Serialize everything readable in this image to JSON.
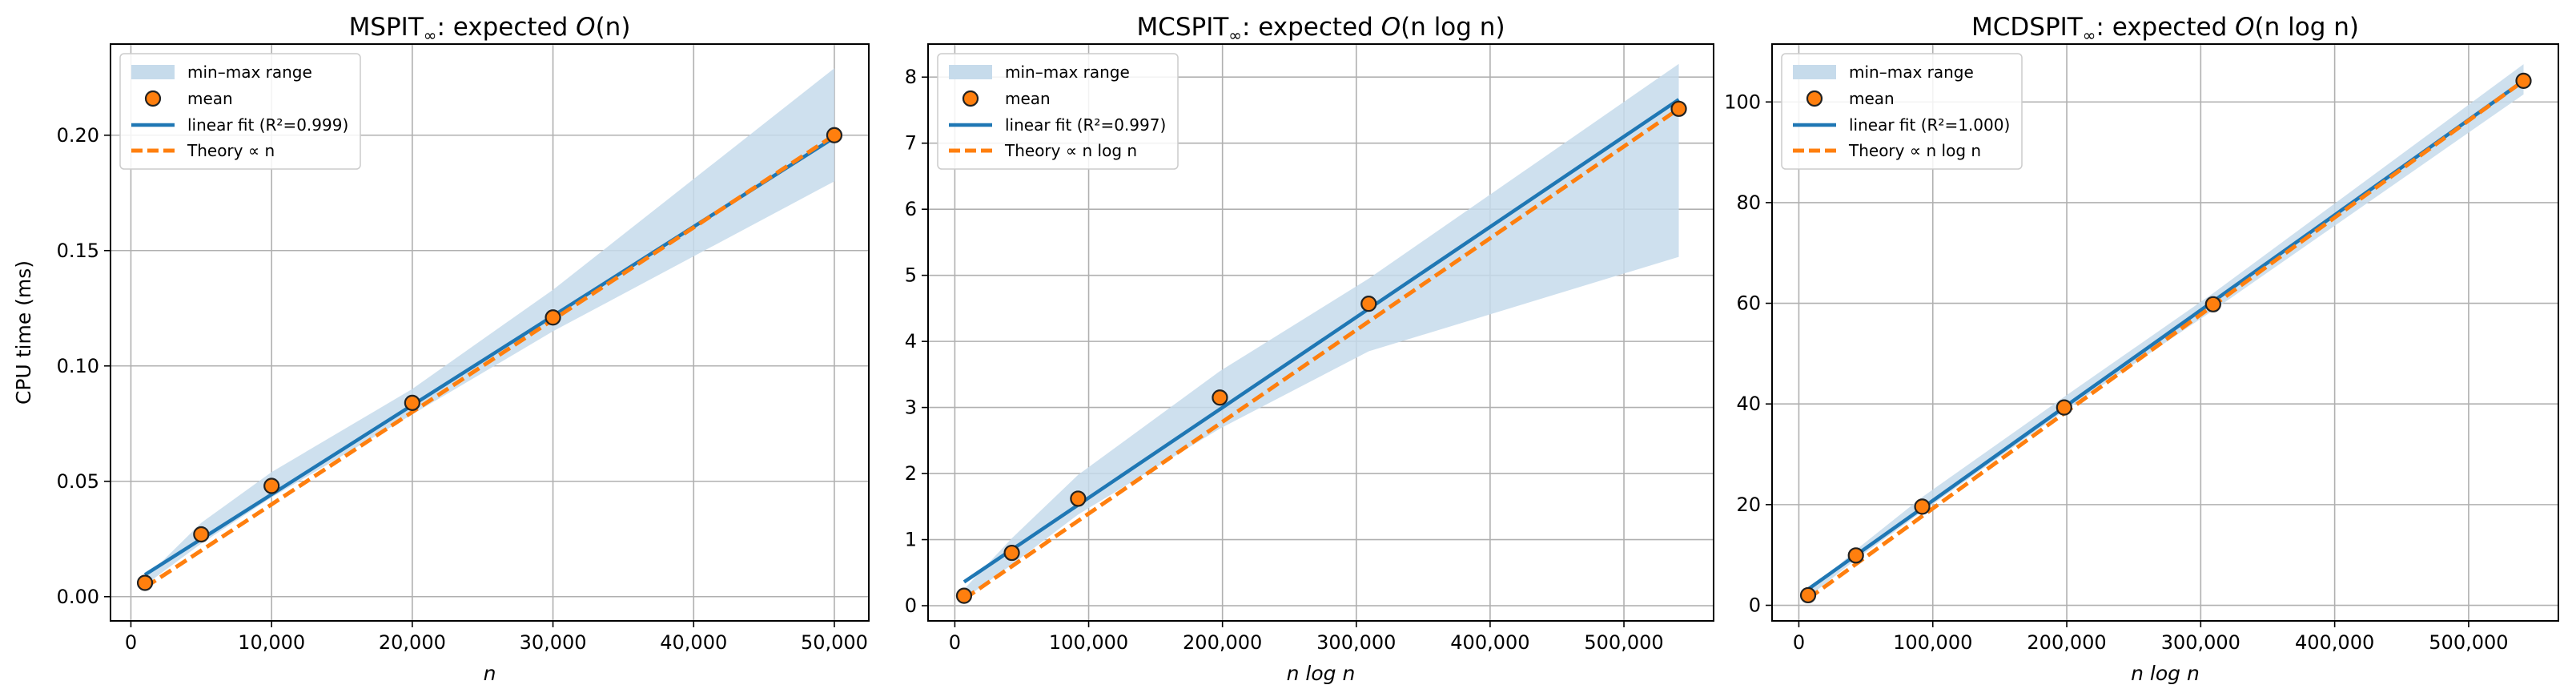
{
  "colors": {
    "band": "#c6dbeb",
    "fit": "#1f77b4",
    "theory": "#ff7f0e",
    "marker_face": "#ff7f0e",
    "marker_edge": "#222222",
    "grid": "#b0b0b0"
  },
  "chart_data": [
    {
      "type": "line",
      "title": "MSPIT∞: expected O(n)",
      "title_parts": {
        "prefix": "MSPIT",
        "sub": "∞",
        "mid": ": expected ",
        "big_o": "O",
        "arg": "(n)"
      },
      "xlabel": "n",
      "ylabel": "CPU time (ms)",
      "xlim": [
        -1450,
        52450
      ],
      "ylim": [
        -0.0105,
        0.2395
      ],
      "x_ticks": [
        0,
        10000,
        20000,
        30000,
        40000,
        50000
      ],
      "x_tick_labels": [
        "0",
        "10,000",
        "20,000",
        "30,000",
        "40,000",
        "50,000"
      ],
      "y_ticks": [
        0.0,
        0.05,
        0.1,
        0.15,
        0.2
      ],
      "y_tick_labels": [
        "0.00",
        "0.05",
        "0.10",
        "0.15",
        "0.20"
      ],
      "grid": true,
      "legend_position": "top-left",
      "legend": [
        "min–max range",
        "mean",
        "linear fit (R²=0.999)",
        "Theory ∝ n"
      ],
      "series": [
        {
          "name": "min–max range",
          "kind": "band",
          "x": [
            1000,
            5000,
            10000,
            20000,
            30000,
            50000
          ],
          "y_min": [
            0.005,
            0.023,
            0.043,
            0.079,
            0.115,
            0.18
          ],
          "y_max": [
            0.008,
            0.032,
            0.054,
            0.09,
            0.133,
            0.229
          ]
        },
        {
          "name": "mean",
          "kind": "scatter",
          "x": [
            1000,
            5000,
            10000,
            20000,
            30000,
            50000
          ],
          "y": [
            0.006,
            0.027,
            0.048,
            0.084,
            0.121,
            0.2
          ]
        },
        {
          "name": "linear fit (R²=0.999)",
          "kind": "line",
          "x": [
            1000,
            50000
          ],
          "y": [
            0.0095,
            0.199
          ]
        },
        {
          "name": "Theory ∝ n",
          "kind": "dashed",
          "x": [
            1000,
            50000
          ],
          "y": [
            0.004,
            0.2
          ]
        }
      ]
    },
    {
      "type": "line",
      "title": "MCSPIT∞: expected O(n log n)",
      "title_parts": {
        "prefix": "MCSPIT",
        "sub": "∞",
        "mid": ": expected ",
        "big_o": "O",
        "arg": "(n log n)"
      },
      "xlabel": "n log n",
      "ylabel": "",
      "xlim": [
        -20000,
        567000
      ],
      "ylim": [
        -0.23,
        8.5
      ],
      "x_ticks": [
        0,
        100000,
        200000,
        300000,
        400000,
        500000
      ],
      "x_tick_labels": [
        "0",
        "100,000",
        "200,000",
        "300,000",
        "400,000",
        "500,000"
      ],
      "y_ticks": [
        0,
        1,
        2,
        3,
        4,
        5,
        6,
        7,
        8
      ],
      "y_tick_labels": [
        "0",
        "1",
        "2",
        "3",
        "4",
        "5",
        "6",
        "7",
        "8"
      ],
      "grid": true,
      "legend_position": "top-left",
      "legend": [
        "min–max range",
        "mean",
        "linear fit (R²=0.997)",
        "Theory ∝ n log n"
      ],
      "series": [
        {
          "name": "min–max range",
          "kind": "band",
          "x": [
            6908,
            42586,
            92103,
            198070,
            309268,
            541002
          ],
          "y_min": [
            0.1,
            0.62,
            1.38,
            2.68,
            3.85,
            5.28
          ],
          "y_max": [
            0.25,
            1.02,
            1.98,
            3.55,
            4.95,
            8.2
          ]
        },
        {
          "name": "mean",
          "kind": "scatter",
          "x": [
            6908,
            42586,
            92103,
            198070,
            309268,
            541002
          ],
          "y": [
            0.15,
            0.8,
            1.62,
            3.15,
            4.57,
            7.52
          ]
        },
        {
          "name": "linear fit (R²=0.997)",
          "kind": "line",
          "x": [
            6908,
            541002
          ],
          "y": [
            0.36,
            7.66
          ]
        },
        {
          "name": "Theory ∝ n log n",
          "kind": "dashed",
          "x": [
            6908,
            541002
          ],
          "y": [
            0.1,
            7.52
          ]
        }
      ]
    },
    {
      "type": "line",
      "title": "MCDSPIT∞: expected O(n log n)",
      "title_parts": {
        "prefix": "MCDSPIT",
        "sub": "∞",
        "mid": ": expected ",
        "big_o": "O",
        "arg": "(n log n)"
      },
      "xlabel": "n log n",
      "ylabel": "",
      "xlim": [
        -20000,
        567000
      ],
      "ylim": [
        -3.1,
        111.5
      ],
      "x_ticks": [
        0,
        100000,
        200000,
        300000,
        400000,
        500000
      ],
      "x_tick_labels": [
        "0",
        "100,000",
        "200,000",
        "300,000",
        "400,000",
        "500,000"
      ],
      "y_ticks": [
        0,
        20,
        40,
        60,
        80,
        100
      ],
      "y_tick_labels": [
        "0",
        "20",
        "40",
        "60",
        "80",
        "100"
      ],
      "grid": true,
      "legend_position": "top-left",
      "legend": [
        "min–max range",
        "mean",
        "linear fit (R²=1.000)",
        "Theory ∝ n log n"
      ],
      "series": [
        {
          "name": "min–max range",
          "kind": "band",
          "x": [
            6908,
            42586,
            92103,
            198070,
            309268,
            541002
          ],
          "y_min": [
            1.6,
            9.1,
            18.6,
            38.6,
            58.6,
            101.5
          ],
          "y_max": [
            2.6,
            11.0,
            21.5,
            41.4,
            62.0,
            107.5
          ]
        },
        {
          "name": "mean",
          "kind": "scatter",
          "x": [
            6908,
            42586,
            92103,
            198070,
            309268,
            541002
          ],
          "y": [
            2.0,
            9.9,
            19.6,
            39.3,
            59.8,
            104.2
          ]
        },
        {
          "name": "linear fit (R²=1.000)",
          "kind": "line",
          "x": [
            6908,
            541002
          ],
          "y": [
            3.2,
            104.2
          ]
        },
        {
          "name": "Theory ∝ n log n",
          "kind": "dashed",
          "x": [
            6908,
            541002
          ],
          "y": [
            1.3,
            104.2
          ]
        }
      ]
    }
  ]
}
